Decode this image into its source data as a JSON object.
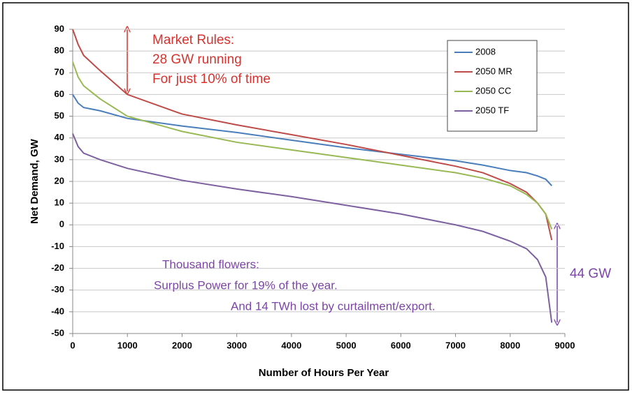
{
  "chart_data": {
    "type": "line",
    "x_label": "Number of Hours Per Year",
    "y_label": "Net Demand, GW",
    "x": [
      0,
      100,
      200,
      500,
      1000,
      2000,
      3000,
      4000,
      5000,
      6000,
      7000,
      7500,
      8000,
      8300,
      8500,
      8650,
      8760
    ],
    "series": [
      {
        "name": "2008",
        "color": "#4a7ebb",
        "values": [
          60,
          56,
          54,
          52.5,
          49,
          45.5,
          42.5,
          39,
          35.5,
          32.5,
          29.5,
          27.5,
          25,
          24,
          22.5,
          21,
          18
        ]
      },
      {
        "name": "2050 MR",
        "color": "#be4b48",
        "values": [
          90,
          83,
          78,
          71,
          60,
          51,
          46,
          41.5,
          37,
          32,
          27,
          24,
          19,
          15,
          10,
          5,
          -7
        ]
      },
      {
        "name": "2050 CC",
        "color": "#98b954",
        "values": [
          75,
          68,
          64,
          58,
          50,
          43,
          38,
          34.5,
          31,
          27.5,
          24,
          21.5,
          18,
          14,
          10,
          5,
          -2
        ]
      },
      {
        "name": "2050 TF",
        "color": "#7d60a0",
        "values": [
          42,
          36,
          33,
          30,
          26,
          20.5,
          16.5,
          13,
          9,
          5,
          0,
          -3,
          -7.5,
          -11,
          -16,
          -24,
          -45
        ]
      }
    ],
    "xlim": [
      0,
      9000
    ],
    "xticks": [
      0,
      1000,
      2000,
      3000,
      4000,
      5000,
      6000,
      7000,
      8000,
      9000
    ],
    "ylim": [
      -50,
      90
    ],
    "yticks": [
      -50,
      -40,
      -30,
      -20,
      -10,
      0,
      10,
      20,
      30,
      40,
      50,
      60,
      70,
      80,
      90
    ],
    "grid": true,
    "legend": "upper right",
    "annotations": [
      {
        "text": [
          "Market Rules:",
          "28 GW running",
          "For just 10% of time"
        ],
        "color": "#d7322d"
      },
      {
        "text": [
          "Thousand flowers:",
          "Surplus Power for 19% of the year.",
          "And 14 TWh lost by curtailment/export."
        ],
        "color": "#7d45a8"
      },
      {
        "text": [
          "44 GW"
        ],
        "color": "#7d45a8"
      }
    ]
  }
}
